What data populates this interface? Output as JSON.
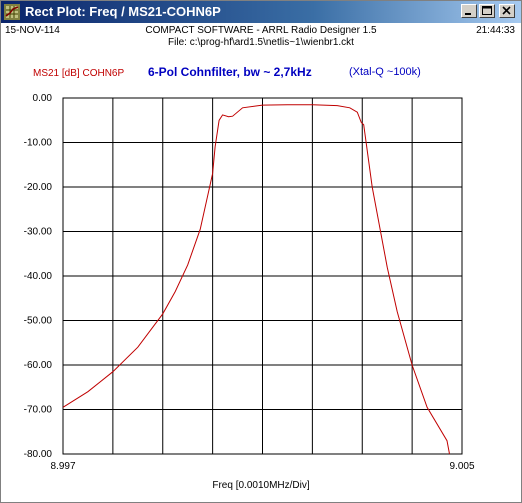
{
  "window": {
    "title": "Rect Plot: Freq / MS21-COHN6P",
    "icon": "app-grid-icon",
    "buttons": [
      "minimize-icon",
      "maximize-icon",
      "close-icon"
    ]
  },
  "header": {
    "date": "15-NOV-114",
    "app": "COMPACT SOFTWARE - ARRL Radio Designer 1.5",
    "time": "21:44:33",
    "file": "File: c:\\prog-hf\\ard1.5\\netlis~1\\wienbr1.ckt"
  },
  "colors": {
    "series": "#c00000",
    "title": "#0000c0",
    "grid": "#000000",
    "titlebar": "#0a246a"
  },
  "chart_data": {
    "type": "line",
    "title": "6-Pol Cohnfilter,  bw ~ 2,7kHz",
    "note": "(Xtal-Q ~100k)",
    "xlabel": "Freq [0.0010MHz/Div]",
    "ylabel": "",
    "x_tick_labels": [
      "8.997",
      "9.005"
    ],
    "y_tick_labels": [
      "0.00",
      "-10.00",
      "-20.00",
      "-30.00",
      "-40.00",
      "-50.00",
      "-60.00",
      "-70.00",
      "-80.00"
    ],
    "xlim": [
      8.997,
      9.005
    ],
    "ylim": [
      -80,
      0
    ],
    "grid": true,
    "series": [
      {
        "name": "MS21 [dB] COHN6P",
        "x": [
          8.997,
          8.9975,
          8.998,
          8.9985,
          8.999,
          8.99925,
          8.9995,
          8.99975,
          9.0,
          9.00005,
          9.00013,
          9.0002,
          9.00032,
          9.0004,
          9.0006,
          9.001,
          9.0015,
          9.002,
          9.0025,
          9.00275,
          9.0029,
          9.00298,
          9.00303,
          9.0032,
          9.0035,
          9.0037,
          9.004,
          9.0043,
          9.0047,
          9.00475
        ],
        "y": [
          -69.5,
          -66,
          -61.5,
          -56,
          -48.5,
          -43.5,
          -37.5,
          -29.5,
          -17,
          -11,
          -5,
          -3.8,
          -4.2,
          -4.1,
          -2.2,
          -1.6,
          -1.5,
          -1.5,
          -1.7,
          -2.2,
          -3.2,
          -5.5,
          -6,
          -20,
          -38,
          -48,
          -60,
          -69.5,
          -77,
          -80
        ]
      }
    ]
  }
}
